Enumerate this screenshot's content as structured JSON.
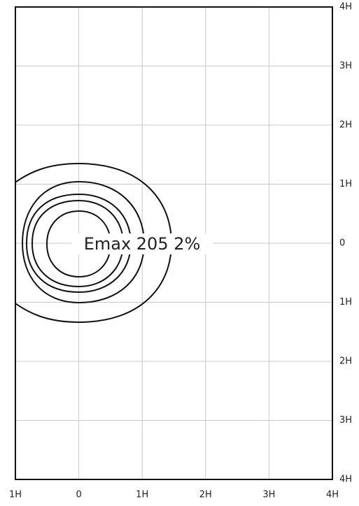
{
  "x_labels": [
    "1H",
    "0",
    "1H",
    "2H",
    "3H",
    "4H"
  ],
  "y_labels": [
    "4H",
    "3H",
    "2H",
    "1H",
    "0",
    "1H",
    "2H",
    "3H",
    "4H"
  ],
  "annotation": "Emax 205 2%"
}
